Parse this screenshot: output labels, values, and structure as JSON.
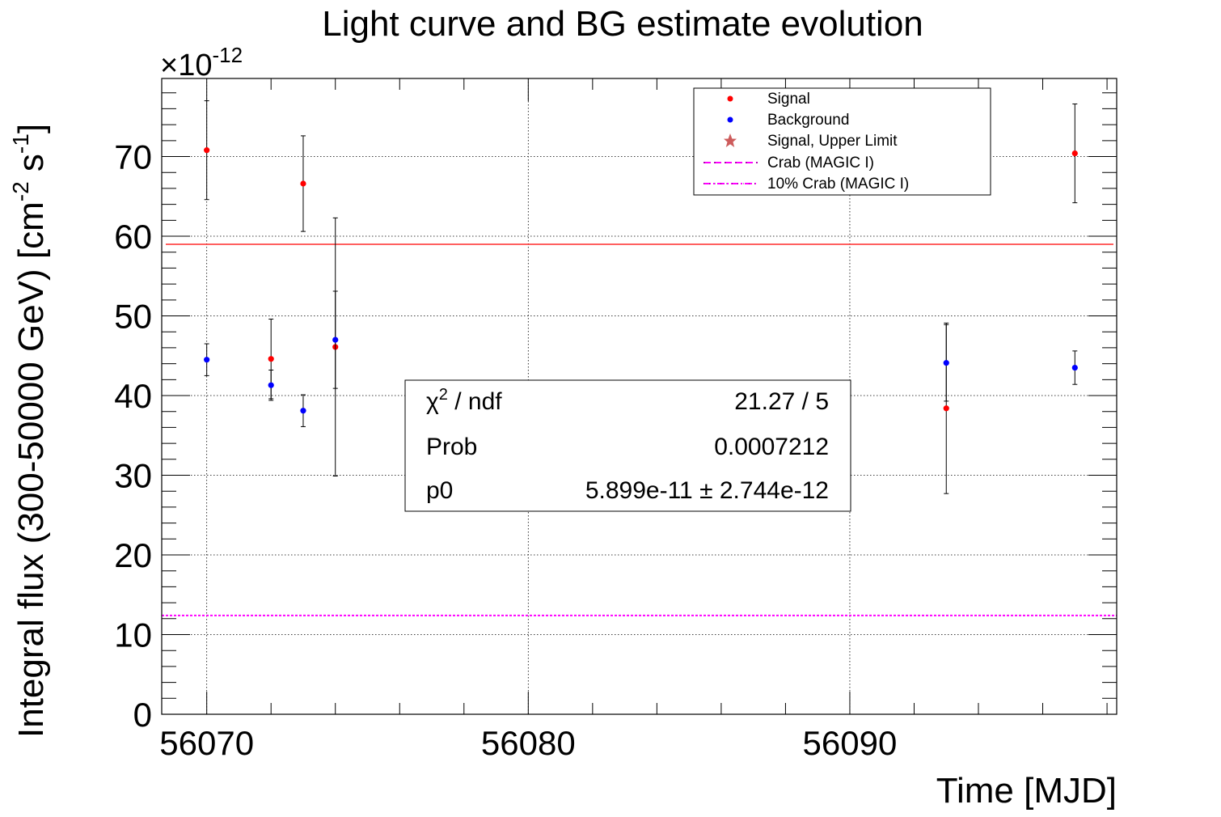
{
  "chart_data": {
    "type": "scatter",
    "title": "Light curve and BG estimate evolution",
    "xlabel": "Time [MJD]",
    "ylabel_main": "Integral flux (300-50000 GeV) [cm",
    "ylabel_exp1": "-2",
    "ylabel_mid": " s",
    "ylabel_exp2": "-1",
    "ylabel_end": "]",
    "y_multiplier_base": "×10",
    "y_multiplier_exp": "-12",
    "xlim": [
      56068.6,
      56098.3
    ],
    "ylim": [
      0,
      79.8
    ],
    "x_ticks": [
      56070,
      56080,
      56090
    ],
    "x_tick_labels": [
      "56070",
      "56080",
      "56090"
    ],
    "y_ticks": [
      0,
      10,
      20,
      30,
      40,
      50,
      60,
      70
    ],
    "y_tick_labels": [
      "0",
      "10",
      "20",
      "30",
      "40",
      "50",
      "60",
      "70"
    ],
    "grid": true,
    "legend": {
      "position": "top-right",
      "entries": [
        "Signal",
        "Background",
        "Signal, Upper Limit",
        "Crab (MAGIC I)",
        "10% Crab (MAGIC I)"
      ]
    },
    "series": [
      {
        "name": "Signal",
        "color": "#ff0000",
        "points": [
          {
            "x": 56070.0,
            "y": 70.8,
            "err": 6.2
          },
          {
            "x": 56072.0,
            "y": 44.6,
            "err": 5.0
          },
          {
            "x": 56073.0,
            "y": 66.6,
            "err": 6.0
          },
          {
            "x": 56074.0,
            "y": 46.1,
            "err": 16.2
          },
          {
            "x": 56093.0,
            "y": 38.4,
            "err": 10.7
          },
          {
            "x": 56097.0,
            "y": 70.4,
            "err": 6.2
          }
        ]
      },
      {
        "name": "Background",
        "color": "#0000ff",
        "points": [
          {
            "x": 56070.0,
            "y": 44.5,
            "err": 2.0
          },
          {
            "x": 56072.0,
            "y": 41.3,
            "err": 1.9
          },
          {
            "x": 56073.0,
            "y": 38.1,
            "err": 2.0
          },
          {
            "x": 56074.0,
            "y": 47.0,
            "err": 6.1
          },
          {
            "x": 56093.0,
            "y": 44.1,
            "err": 4.8
          },
          {
            "x": 56097.0,
            "y": 43.5,
            "err": 2.1
          }
        ]
      }
    ],
    "fit_line": {
      "y": 58.99,
      "color": "#ff0000"
    },
    "crab_line": {
      "y": 12.4,
      "color": "#ff00ff"
    },
    "legend_colors": {
      "signal": "#ff0000",
      "background": "#0000ff",
      "upper_limit": "#cd5c5c",
      "crab": "#ff00ff"
    },
    "fit_stats": {
      "rows": [
        {
          "label_base": "χ",
          "label_sup": "2",
          "label_rest": " / ndf",
          "value": "21.27 / 5"
        },
        {
          "label_base": "Prob",
          "label_sup": "",
          "label_rest": "",
          "value": "0.0007212"
        },
        {
          "label_base": "p0",
          "label_sup": "",
          "label_rest": "",
          "value": "5.899e-11 ± 2.744e-12"
        }
      ]
    }
  }
}
